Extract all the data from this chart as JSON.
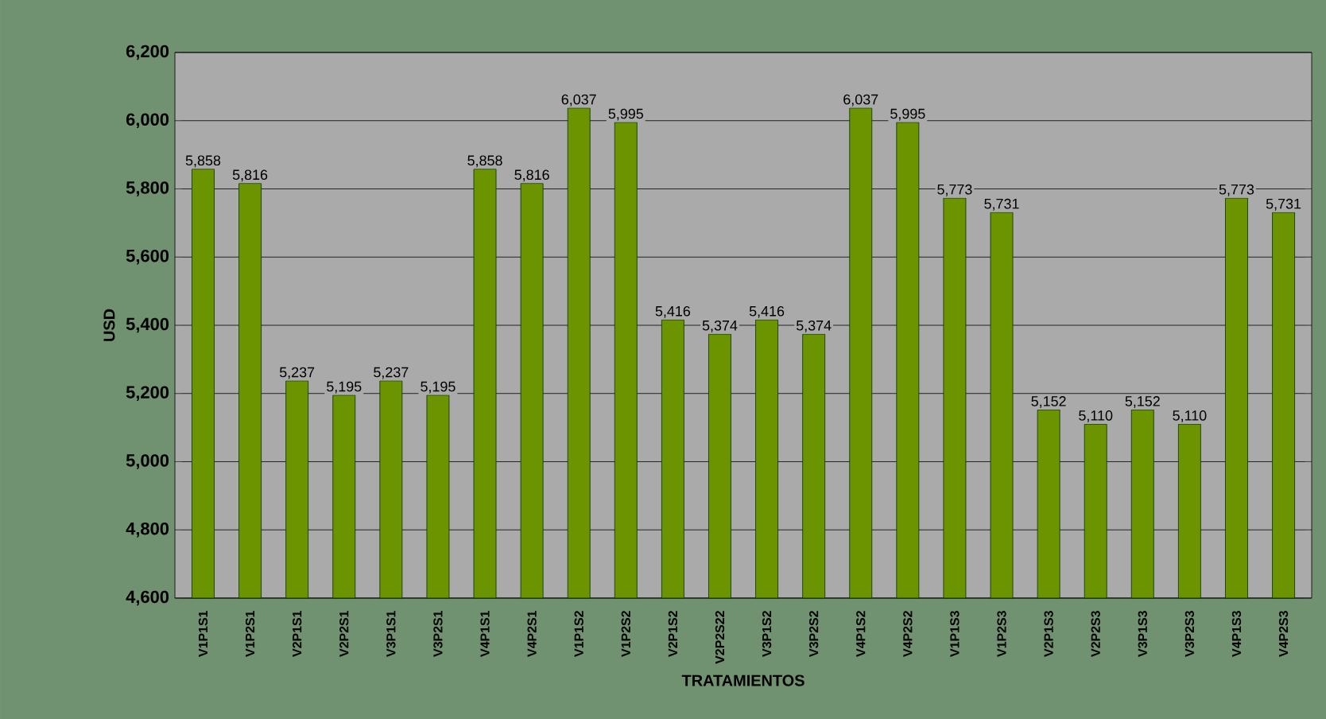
{
  "chart_data": {
    "type": "bar",
    "xlabel": "TRATAMIENTOS",
    "ylabel": "USD",
    "categories": [
      "V1P1S1",
      "V1P2S1",
      "V2P1S1",
      "V2P2S1",
      "V3P1S1",
      "V3P2S1",
      "V4P1S1",
      "V4P2S1",
      "V1P1S2",
      "V1P2S2",
      "V2P1S2",
      "V2P2S22",
      "V3P1S2",
      "V3P2S2",
      "V4P1S2",
      "V4P2S2",
      "V1P1S3",
      "V1P2S3",
      "V2P1S3",
      "V2P2S3",
      "V3P1S3",
      "V3P2S3",
      "V4P1S3",
      "V4P2S3"
    ],
    "values": [
      5858,
      5816,
      5237,
      5195,
      5237,
      5195,
      5858,
      5816,
      6037,
      5995,
      5416,
      5374,
      5416,
      5374,
      6037,
      5995,
      5773,
      5731,
      5152,
      5110,
      5152,
      5110,
      5773,
      5731
    ],
    "color": "#6b9400",
    "ylim": [
      4600,
      6200
    ],
    "yticks": [
      {
        "value": 4600,
        "label": "4,600"
      },
      {
        "value": 4800,
        "label": "4,800"
      },
      {
        "value": 5000,
        "label": "5,000"
      },
      {
        "value": 5200,
        "label": "5,200"
      },
      {
        "value": 5400,
        "label": "5,400"
      },
      {
        "value": 5600,
        "label": "5,600"
      },
      {
        "value": 5800,
        "label": "5,800"
      },
      {
        "value": 6000,
        "label": "6,000"
      },
      {
        "value": 6200,
        "label": "6,200"
      }
    ],
    "value_labels": [
      "5,858",
      "5,816",
      "5,237",
      "5,195",
      "5,237",
      "5,195",
      "5,858",
      "5,816",
      "6,037",
      "5,995",
      "5,416",
      "5,374",
      "5,416",
      "5,374",
      "6,037",
      "5,995",
      "5,773",
      "5,731",
      "5,152",
      "5,110",
      "5,152",
      "5,110",
      "5,773",
      "5,731"
    ],
    "grid": "y"
  }
}
